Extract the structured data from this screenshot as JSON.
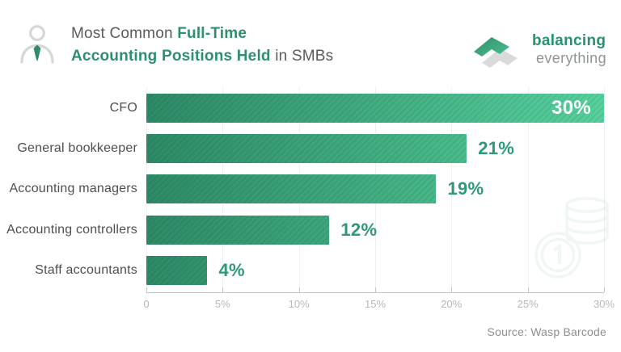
{
  "header": {
    "title": {
      "regular_1": "Most Common ",
      "bold_1": "Full-Time",
      "bold_2": "Accounting Positions Held",
      "regular_2": " in SMBs"
    },
    "brand": {
      "line1": "balancing",
      "line2": "everything"
    }
  },
  "chart_data": {
    "type": "bar",
    "orientation": "horizontal",
    "title": "Most Common Full-Time Accounting Positions Held in SMBs",
    "categories": [
      "CFO",
      "General bookkeeper",
      "Accounting managers",
      "Accounting controllers",
      "Staff accountants"
    ],
    "values": [
      30,
      21,
      19,
      12,
      4
    ],
    "value_labels": [
      "30%",
      "21%",
      "19%",
      "12%",
      "4%"
    ],
    "xlim": [
      0,
      30
    ],
    "x_ticks": [
      "0",
      "5%",
      "10%",
      "15%",
      "20%",
      "25%",
      "30%"
    ],
    "grid": true,
    "legend": false,
    "source": "Source: Wasp Barcode",
    "colors": {
      "bar_gradient_start": "#2d8a66",
      "bar_gradient_end": "#56d09d",
      "value_text": "#2e9a74",
      "value_text_on_bar": "#ffffff",
      "title_accent": "#2e8f6b",
      "title_text": "#585d5b",
      "category_text": "#4b504e",
      "tick_text": "#b4b9b7",
      "source_text": "#8b918f"
    }
  }
}
